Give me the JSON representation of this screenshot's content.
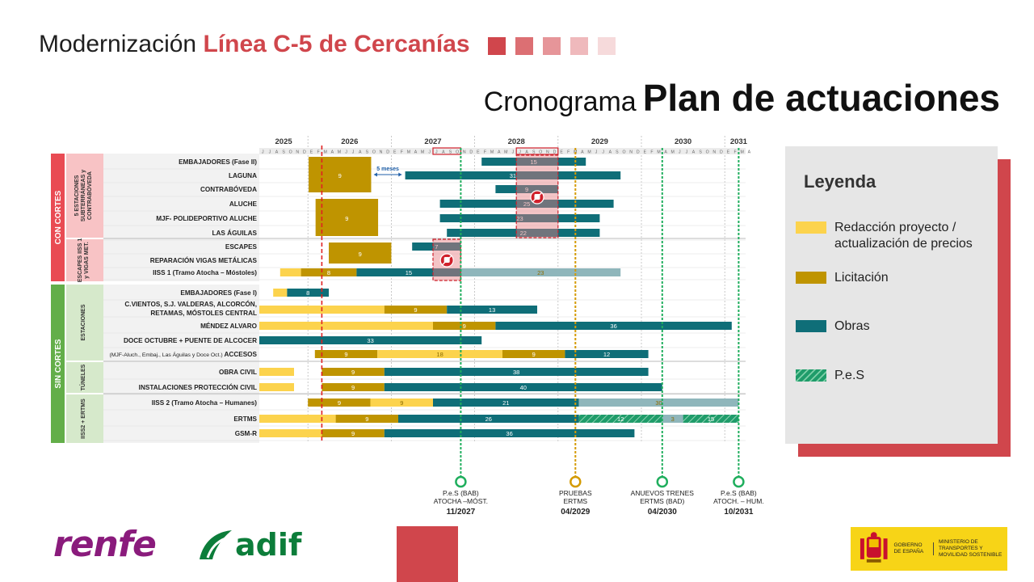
{
  "header": {
    "title_prefix": "Modernización",
    "title_accent": "Línea C-5 de Cercanías"
  },
  "subtitle": {
    "light": "Cronograma",
    "bold": "Plan de actuaciones"
  },
  "colors": {
    "accent": "#d0464c",
    "redaccion": "#fcd34d",
    "licitacion": "#bf9400",
    "obras": "#0f6e78",
    "obras_light": "#8fb6bb",
    "pes": "#1f9c6a",
    "con_cortes": "#e94b53",
    "con_cortes_light": "#f8c3c5",
    "sin_cortes": "#63ae49",
    "sin_cortes_light": "#d6e9cb"
  },
  "header_squares": [
    "#d0464c",
    "#dc6f73",
    "#e69599",
    "#efb9bc",
    "#f6dadb"
  ],
  "gantt": {
    "years": [
      "2025",
      "2026",
      "2027",
      "2028",
      "2029",
      "2030",
      "2031"
    ],
    "month_letters": [
      "J",
      "J",
      "A",
      "S",
      "O",
      "N",
      "D",
      "E",
      "F",
      "M",
      "A",
      "M",
      "J",
      "J",
      "A",
      "S",
      "O",
      "N",
      "D",
      "E",
      "F",
      "M",
      "A",
      "M",
      "J",
      "J",
      "A",
      "S",
      "O",
      "N",
      "D",
      "E",
      "F",
      "M",
      "A",
      "M",
      "J",
      "J",
      "A",
      "S",
      "O",
      "N",
      "D",
      "E",
      "F",
      "M",
      "A",
      "M",
      "J",
      "J",
      "A",
      "S",
      "O",
      "N",
      "D",
      "E",
      "F",
      "M",
      "A",
      "M",
      "J",
      "J",
      "A",
      "S",
      "O",
      "N",
      "D",
      "E",
      "F",
      "M",
      "A"
    ],
    "groups": [
      {
        "label": "CON CORTES",
        "sub": [
          {
            "label": "5 ESTACIONES SUBTERRÁNEAS y CONTRABÓVEDA",
            "rows": [
              "EMBAJADORES (Fase II)",
              "LAGUNA",
              "CONTRABÓVEDA",
              "ALUCHE",
              "MJF- POLIDEPORTIVO ALUCHE",
              "LAS ÁGUILAS"
            ]
          },
          {
            "label": "ESCAPES IISS 1 y VIGAS MET.",
            "rows": [
              "ESCAPES",
              "REPARACIÓN VIGAS METÁLICAS",
              "IISS 1 (Tramo Atocha – Móstoles)"
            ]
          }
        ]
      },
      {
        "label": "SIN CORTES",
        "sub": [
          {
            "label": "ESTACIONES",
            "rows": [
              "EMBAJADORES (Fase I)",
              "C.VIENTOS, S.J. VALDERAS, ALCORCÓN, RETAMAS, MÓSTOLES CENTRAL",
              "MÉNDEZ ALVARO",
              "DOCE OCTUBRE + PUENTE DE ALCOCER",
              "(MJF-Aluch., Embaj., Las Águilas y Doce Oct.) ACCESOS"
            ]
          },
          {
            "label": "TÚNELES",
            "rows": [
              "OBRA CIVIL",
              "INSTALACIONES PROTECCIÓN CIVIL"
            ]
          },
          {
            "label": "IISS2 + ERTMS",
            "rows": [
              "IISS 2 (Tramo Atocha – Humanes)",
              "ERTMS",
              "GSM-R"
            ]
          }
        ]
      }
    ],
    "bar_labels": {
      "embajadores_ii": "15",
      "laguna_lic": "9",
      "laguna_obras": "31",
      "contraboveda": "9",
      "aluche": "25",
      "mjf_lic": "9",
      "mjf_obras": "23",
      "aguilas": "22",
      "escapes": "7",
      "vigas_lic": "9",
      "iiss1_lic": "8",
      "iiss1_obras": "15",
      "iiss1_pes": "23",
      "emb_i": "8",
      "cvientos_lic": "9",
      "cvientos_obras": "13",
      "mendez_lic": "9",
      "mendez_obras": "36",
      "doce": "33",
      "accesos_lic1": "9",
      "accesos_red": "18",
      "accesos_lic2": "9",
      "accesos_obras": "12",
      "obra_civil_lic": "9",
      "obra_civil_obras": "38",
      "ipc_lic": "9",
      "ipc_obras": "40",
      "iiss2_lic": "9",
      "iiss2_red": "9",
      "iiss2_obras": "21",
      "iiss2_pes": "30",
      "ertms_lic": "9",
      "ertms_obras": "26",
      "ertms_pes1": "12",
      "ertms_pes2": "3",
      "ertms_pes3": "15",
      "gsmr_lic": "9",
      "gsmr_obras": "36"
    },
    "annotation_5meses": "5 meses",
    "milestones": [
      {
        "l1": "P.e.S  (BAB)",
        "l2": "ATOCHA –MÓST.",
        "date": "11/2027",
        "color": "#1fae5d"
      },
      {
        "l1": "PRUEBAS",
        "l2": "ERTMS",
        "date": "04/2029",
        "color": "#d49a00"
      },
      {
        "l1": "ANUEVOS TRENES",
        "l2": "ERTMS (BAD)",
        "date": "04/2030",
        "color": "#1fae5d"
      },
      {
        "l1": "P.e.S (BAB)",
        "l2": "ATOCH. – HUM.",
        "date": "10/2031",
        "color": "#1fae5d"
      }
    ]
  },
  "legend": {
    "title": "Leyenda",
    "items": [
      {
        "label": "Redacción proyecto / actualización de precios",
        "color": "#fcd34d",
        "hatch": false
      },
      {
        "label": "Licitación",
        "color": "#bf9400",
        "hatch": false
      },
      {
        "label": "Obras",
        "color": "#0f6e78",
        "hatch": false
      },
      {
        "label": "P.e.S",
        "color": "#1f9c6a",
        "hatch": true
      }
    ]
  },
  "footer": {
    "renfe": "renfe",
    "adif": "adif",
    "gov_left": "GOBIERNO DE ESPAÑA",
    "gov_right": "MINISTERIO DE TRANSPORTES Y MOVILIDAD SOSTENIBLE"
  }
}
